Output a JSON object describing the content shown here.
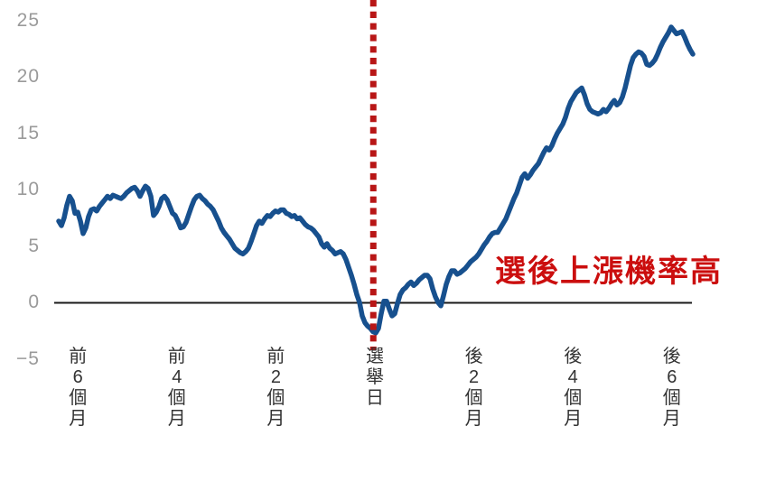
{
  "chart_data": {
    "type": "line",
    "title": "",
    "annotation": "選後上漲機率高",
    "ylim": [
      -5,
      25
    ],
    "y_ticks": [
      25,
      20,
      15,
      10,
      5,
      0,
      -5
    ],
    "x_ticks": [
      {
        "t": -6,
        "label": "前6個月",
        "lines": [
          "前",
          "6",
          "個",
          "月"
        ]
      },
      {
        "t": -4,
        "label": "前4個月",
        "lines": [
          "前",
          "4",
          "個",
          "月"
        ]
      },
      {
        "t": -2,
        "label": "前2個月",
        "lines": [
          "前",
          "2",
          "個",
          "月"
        ]
      },
      {
        "t": 0,
        "label": "選舉日",
        "lines": [
          "選",
          "舉",
          "日"
        ]
      },
      {
        "t": 2,
        "label": "後2個月",
        "lines": [
          "後",
          "2",
          "個",
          "月"
        ]
      },
      {
        "t": 4,
        "label": "後4個月",
        "lines": [
          "後",
          "4",
          "個",
          "月"
        ]
      },
      {
        "t": 6,
        "label": "後6個月",
        "lines": [
          "後",
          "6",
          "個",
          "月"
        ]
      }
    ],
    "x_unit": "months relative to election day",
    "event_line_t": -0.03,
    "zero_line": true,
    "legend": "none",
    "grid": false,
    "colors": {
      "line": "#17508e",
      "event_line": "#b81616",
      "annotation": "#cb0e0e",
      "zero_line": "#1a1a1a",
      "y_tick_text": "#9a9a9a",
      "x_tick_text": "#333333",
      "background": "#ffffff"
    },
    "series": [
      {
        "name": "index-performance",
        "t_start": -6.35,
        "t_step": 0.05474,
        "values": [
          7.2,
          6.8,
          7.5,
          8.6,
          9.4,
          9.0,
          7.9,
          8.0,
          7.2,
          6.1,
          6.6,
          7.6,
          8.2,
          8.3,
          8.1,
          8.5,
          8.8,
          9.1,
          9.4,
          9.2,
          9.5,
          9.4,
          9.3,
          9.2,
          9.4,
          9.7,
          9.9,
          10.1,
          10.2,
          9.9,
          9.4,
          9.9,
          10.3,
          10.1,
          9.4,
          7.7,
          8.0,
          8.5,
          9.2,
          9.4,
          9.1,
          8.5,
          7.9,
          7.7,
          7.2,
          6.6,
          6.7,
          7.1,
          7.8,
          8.5,
          9.1,
          9.4,
          9.5,
          9.2,
          9.0,
          8.7,
          8.5,
          8.2,
          7.7,
          7.2,
          6.6,
          6.2,
          5.9,
          5.6,
          5.2,
          4.8,
          4.6,
          4.4,
          4.3,
          4.5,
          4.8,
          5.4,
          6.1,
          6.8,
          7.2,
          7.0,
          7.4,
          7.7,
          7.6,
          7.9,
          8.1,
          8.0,
          8.2,
          8.2,
          7.9,
          7.8,
          7.6,
          7.7,
          7.4,
          7.5,
          7.2,
          6.9,
          6.7,
          6.6,
          6.4,
          6.1,
          5.8,
          5.2,
          4.9,
          5.2,
          4.8,
          4.6,
          4.3,
          4.4,
          4.5,
          4.3,
          3.8,
          3.1,
          2.4,
          1.6,
          0.7,
          0.0,
          -1.2,
          -1.8,
          -2.1,
          -2.3,
          -2.6,
          -2.7,
          -2.3,
          -1.0,
          0.1,
          0.1,
          -0.6,
          -1.2,
          -1.0,
          -0.1,
          0.7,
          1.1,
          1.3,
          1.6,
          1.8,
          1.5,
          1.7,
          2.0,
          2.2,
          2.4,
          2.4,
          2.1,
          1.2,
          0.5,
          0.0,
          -0.3,
          0.6,
          1.6,
          2.3,
          2.8,
          2.8,
          2.5,
          2.6,
          2.8,
          3.0,
          3.3,
          3.6,
          3.8,
          4.0,
          4.3,
          4.7,
          5.1,
          5.4,
          5.8,
          6.1,
          6.2,
          6.2,
          6.6,
          7.0,
          7.4,
          8.0,
          8.6,
          9.2,
          9.7,
          10.4,
          11.1,
          11.4,
          11.0,
          11.3,
          11.7,
          12.0,
          12.3,
          12.8,
          13.3,
          13.7,
          13.5,
          13.9,
          14.5,
          15.0,
          15.4,
          15.8,
          16.4,
          17.2,
          17.8,
          18.2,
          18.6,
          18.8,
          19.0,
          18.4,
          17.6,
          17.1,
          16.9,
          16.8,
          16.7,
          16.8,
          17.1,
          16.9,
          17.2,
          17.6,
          17.9,
          17.5,
          17.7,
          18.2,
          19.0,
          20.0,
          21.0,
          21.7,
          22.0,
          22.2,
          22.1,
          21.8,
          21.1,
          21.0,
          21.2,
          21.5,
          22.0,
          22.6,
          23.1,
          23.5,
          23.9,
          24.4,
          24.1,
          23.8,
          23.9,
          24.0,
          23.5,
          22.9,
          22.4,
          22.0
        ]
      }
    ]
  }
}
